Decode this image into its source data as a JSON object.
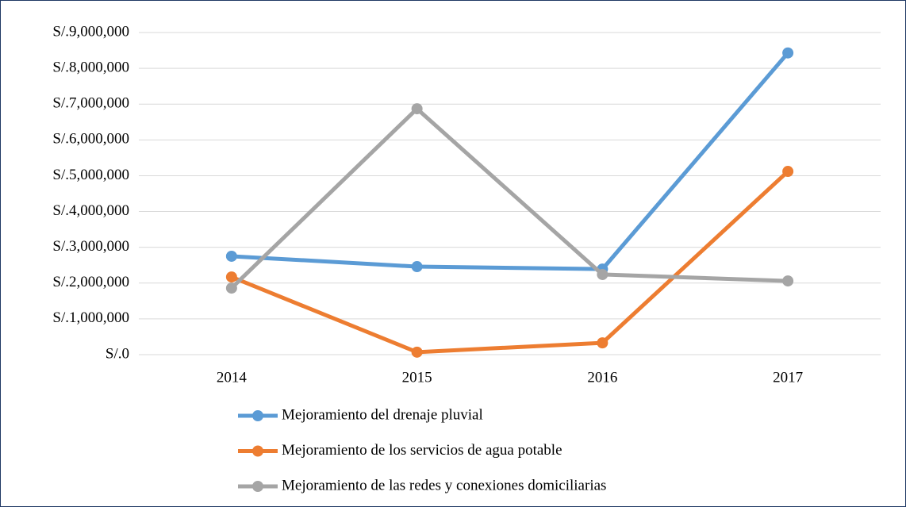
{
  "chart_data": {
    "type": "line",
    "categories": [
      "2014",
      "2015",
      "2016",
      "2017"
    ],
    "series": [
      {
        "name": "Mejoramiento del drenaje pluvial",
        "color": "#5b9bd5",
        "values": [
          2750000,
          2460000,
          2390000,
          8430000
        ]
      },
      {
        "name": "Mejoramiento de los servicios de agua potable",
        "color": "#ed7d31",
        "values": [
          2170000,
          70000,
          330000,
          5120000
        ]
      },
      {
        "name": "Mejoramiento de las redes y conexiones domiciliarias",
        "color": "#a5a5a5",
        "values": [
          1860000,
          6870000,
          2240000,
          2060000
        ]
      }
    ],
    "ylim": [
      0,
      9000000
    ],
    "yticks": [
      {
        "value": 0,
        "label": "S/.0"
      },
      {
        "value": 1000000,
        "label": "S/.1,000,000"
      },
      {
        "value": 2000000,
        "label": "S/.2,000,000"
      },
      {
        "value": 3000000,
        "label": "S/.3,000,000"
      },
      {
        "value": 4000000,
        "label": "S/.4,000,000"
      },
      {
        "value": 5000000,
        "label": "S/.5,000,000"
      },
      {
        "value": 6000000,
        "label": "S/.6,000,000"
      },
      {
        "value": 7000000,
        "label": "S/.7,000,000"
      },
      {
        "value": 8000000,
        "label": "S/.8,000,000"
      },
      {
        "value": 9000000,
        "label": "S/.9,000,000"
      }
    ],
    "grid": true,
    "legend": "bottom"
  }
}
